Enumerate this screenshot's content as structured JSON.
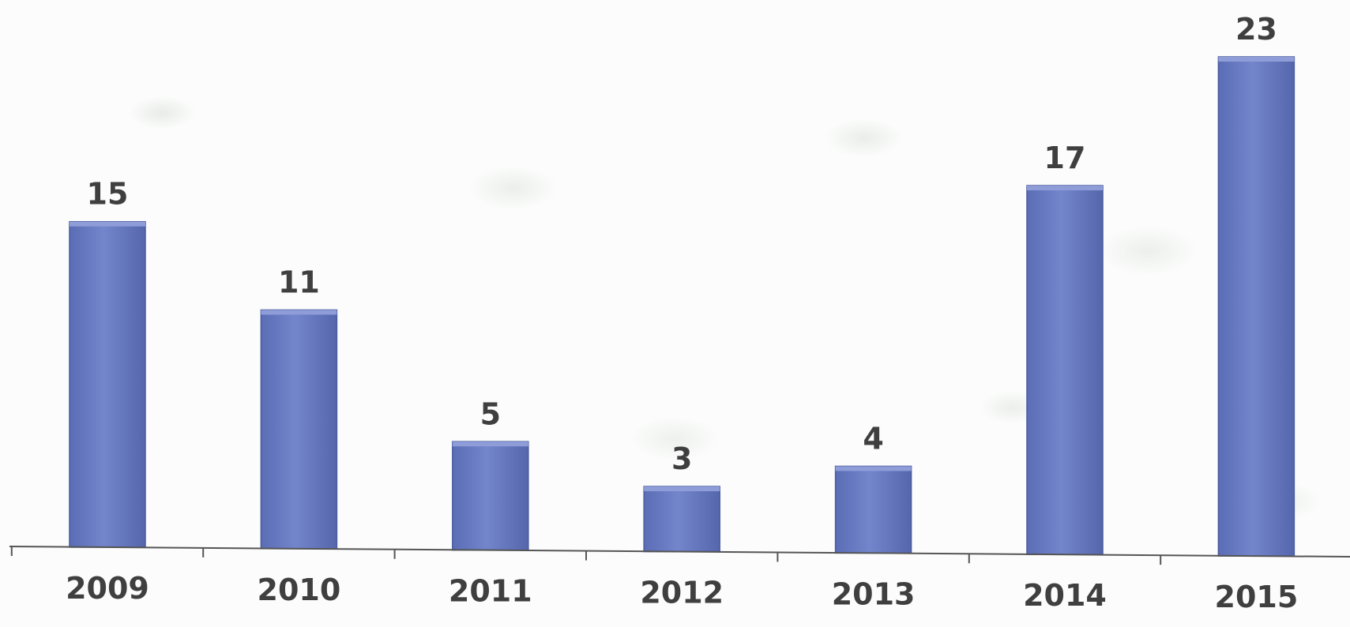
{
  "chart_data": {
    "type": "bar",
    "categories": [
      "2009",
      "2010",
      "2011",
      "2012",
      "2013",
      "2014",
      "2015"
    ],
    "values": [
      15,
      11,
      5,
      3,
      4,
      17,
      23
    ],
    "data_labels": [
      "15",
      "11",
      "5",
      "3",
      "4",
      "17",
      "23"
    ],
    "title": "",
    "xlabel": "",
    "ylabel": "",
    "ylim": [
      0,
      23
    ],
    "grid": false,
    "legend": "none",
    "bar_color": "#6a7cc2",
    "bar_border_color": "#4a5ba0"
  }
}
